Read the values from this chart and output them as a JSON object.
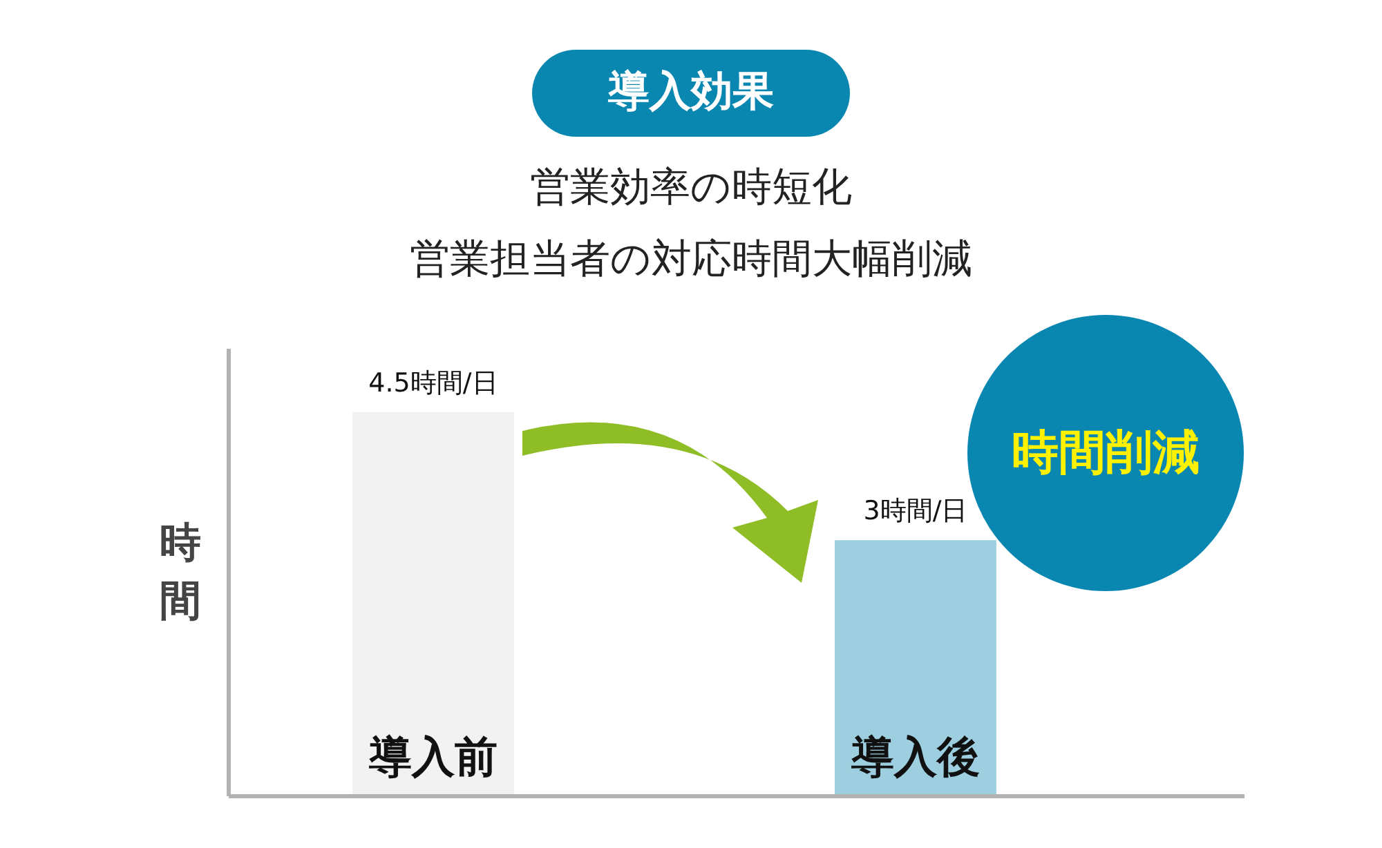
{
  "chart_data": {
    "type": "bar",
    "title": "導入効果",
    "subtitle": "営業効率の時短化",
    "ylabel": "時間",
    "categories": [
      "導入前",
      "導入後"
    ],
    "values": [
      4.5,
      3
    ],
    "colors": [
      "#f2f2f2",
      "#9ecfe0"
    ],
    "value_labels": [
      "4.5時間/日",
      "3時間/日"
    ],
    "annotations": [
      "営業担当者の対応時間大幅削減",
      "時間削減"
    ],
    "tick_labels": false,
    "grid": false
  }
}
